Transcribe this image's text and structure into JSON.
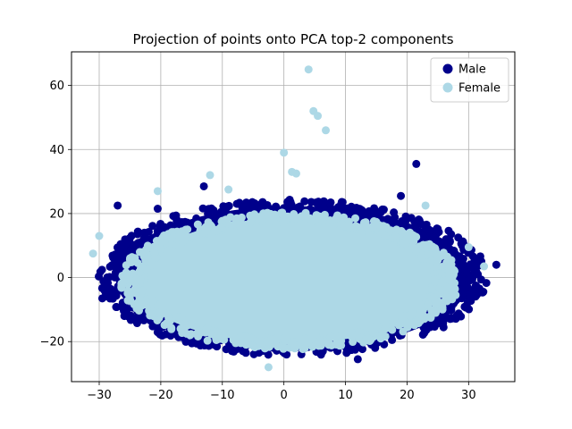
{
  "chart_data": {
    "type": "scatter",
    "title": "Projection of points onto PCA top-2 components",
    "xlabel": "",
    "ylabel": "",
    "xlim": [
      -34.5,
      37.5
    ],
    "ylim": [
      -32.5,
      70.5
    ],
    "xticks": [
      -30,
      -20,
      -10,
      0,
      10,
      20,
      30
    ],
    "yticks": [
      -20,
      0,
      20,
      40,
      60
    ],
    "grid": true,
    "legend_position": "top-right",
    "series": [
      {
        "name": "Male",
        "color": "#00008b",
        "cloud": {
          "cx": 1.5,
          "cy": 0,
          "rx": 31,
          "ry": 24
        },
        "outliers": [
          [
            21.5,
            35.5
          ],
          [
            34.5,
            4
          ],
          [
            -27,
            22.5
          ],
          [
            -13,
            28.5
          ],
          [
            19,
            25.5
          ],
          [
            -29.5,
            -6.5
          ],
          [
            31.5,
            1
          ],
          [
            -20.5,
            21.5
          ],
          [
            12,
            -25.5
          ]
        ]
      },
      {
        "name": "Female",
        "color": "#add8e6",
        "cloud": {
          "cx": 1,
          "cy": -1,
          "rx": 27,
          "ry": 21
        },
        "outliers": [
          [
            4,
            65
          ],
          [
            4.8,
            52
          ],
          [
            5.5,
            50.5
          ],
          [
            6.8,
            46
          ],
          [
            0,
            39
          ],
          [
            1.3,
            33
          ],
          [
            2,
            32.5
          ],
          [
            -12,
            32
          ],
          [
            -20.5,
            27
          ],
          [
            -31,
            7.5
          ],
          [
            30,
            9.5
          ],
          [
            32.5,
            3.5
          ],
          [
            -2.5,
            -28
          ],
          [
            -30,
            13
          ],
          [
            23,
            22.5
          ],
          [
            -9,
            27.5
          ]
        ]
      }
    ]
  }
}
